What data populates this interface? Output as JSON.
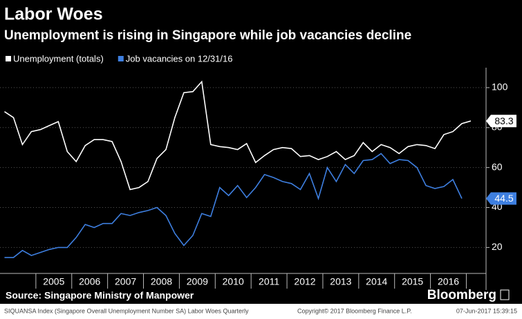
{
  "chart_data": {
    "type": "line",
    "title": "Labor Woes",
    "subtitle": "Unemployment is rising in Singapore while job vacancies decline",
    "source": "Source: Singapore Ministry of Manpower",
    "brand": "Bloomberg",
    "footer_left": "SIQUANSA Index (Singapore Overall Unemployment Number SA) Labor Woes  Quarterly",
    "footer_center": "Copyright© 2017 Bloomberg Finance L.P.",
    "footer_right": "07-Jun-2017 15:39:15",
    "x": [
      2004.125,
      2004.375,
      2004.625,
      2004.875,
      2005.125,
      2005.375,
      2005.625,
      2005.875,
      2006.125,
      2006.375,
      2006.625,
      2006.875,
      2007.125,
      2007.375,
      2007.625,
      2007.875,
      2008.125,
      2008.375,
      2008.625,
      2008.875,
      2009.125,
      2009.375,
      2009.625,
      2009.875,
      2010.125,
      2010.375,
      2010.625,
      2010.875,
      2011.125,
      2011.375,
      2011.625,
      2011.875,
      2012.125,
      2012.375,
      2012.625,
      2012.875,
      2013.125,
      2013.375,
      2013.625,
      2013.875,
      2014.125,
      2014.375,
      2014.625,
      2014.875,
      2015.125,
      2015.375,
      2015.625,
      2015.875,
      2016.125,
      2016.375,
      2016.625,
      2016.875,
      2017.125
    ],
    "series": [
      {
        "name": "Unemployment (totals)",
        "color": "#ffffff",
        "values": [
          88,
          85,
          71.5,
          78,
          79,
          81,
          83,
          68,
          63,
          71,
          74,
          74,
          73,
          63,
          49,
          50,
          53,
          64.5,
          69,
          85,
          97.5,
          98,
          103,
          71.5,
          70.5,
          70,
          69,
          72,
          62.5,
          66,
          69,
          70,
          69.5,
          65.5,
          66,
          64,
          65.5,
          68,
          64,
          66,
          72.5,
          68,
          71.5,
          70,
          67,
          70.5,
          71.5,
          71,
          69.5,
          76.5,
          78,
          82,
          83.3
        ]
      },
      {
        "name": "Job vacancies on 12/31/16",
        "color": "#3e7fe0",
        "values": [
          15,
          15,
          18.5,
          16,
          17.5,
          19,
          20,
          20,
          25,
          31.5,
          30,
          32,
          32,
          37,
          36,
          37.5,
          38.5,
          40,
          36,
          27,
          21,
          26,
          37,
          35.5,
          50,
          46,
          51,
          45,
          50,
          56.5,
          55,
          53,
          52,
          49,
          57,
          44.5,
          60,
          53,
          61.5,
          57,
          63.5,
          64,
          67,
          62,
          64,
          63.5,
          60,
          51,
          49.5,
          50.5,
          54,
          44.5,
          null
        ]
      }
    ],
    "xlim": [
      2004,
      2017.55
    ],
    "xticks": [
      2005,
      2006,
      2007,
      2008,
      2009,
      2010,
      2011,
      2012,
      2013,
      2014,
      2015,
      2016
    ],
    "ylim": [
      7,
      110
    ],
    "yticks": [
      20,
      40,
      60,
      80,
      100
    ],
    "grid": true
  }
}
